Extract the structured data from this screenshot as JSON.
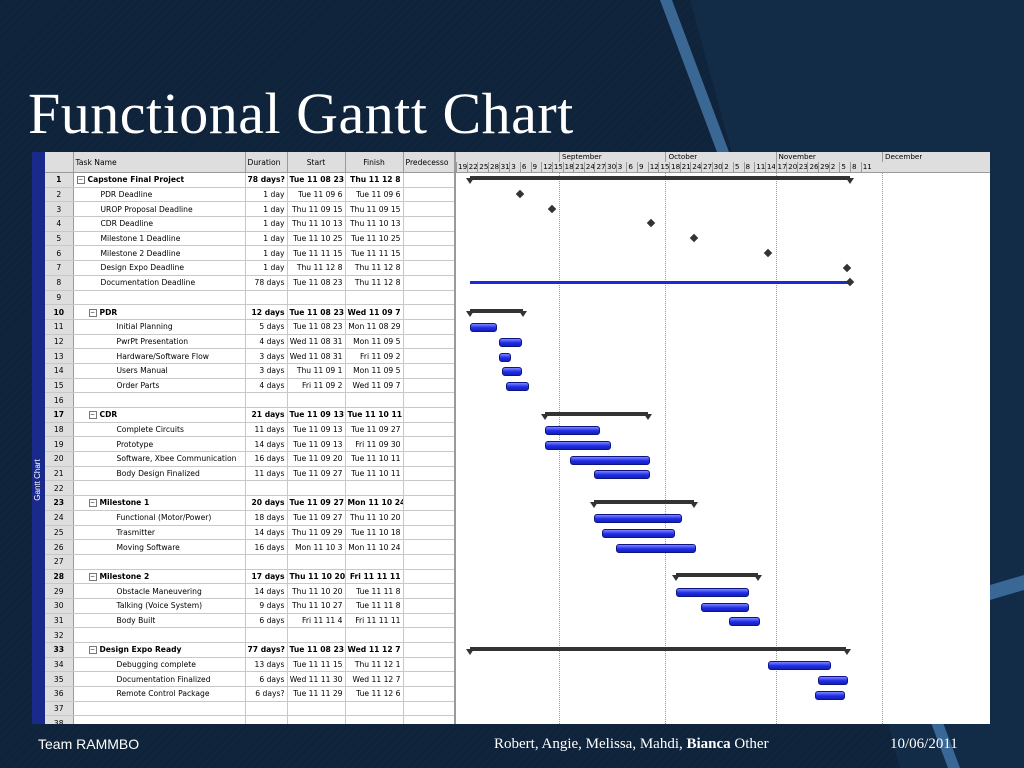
{
  "slide": {
    "title": "Functional Gantt Chart",
    "footer_team": "Team RAMMBO",
    "footer_names_before": "Robert, Angie, Melissa, Mahdi, ",
    "footer_names_bold": "Bianca",
    "footer_names_after": " Other",
    "footer_date": "10/06/2011"
  },
  "gantt": {
    "side_label": "Gantt Chart",
    "columns": {
      "id": "",
      "name": "Task Name",
      "duration": "Duration",
      "start": "Start",
      "finish": "Finish",
      "pred": "Predecesso"
    },
    "rows": [
      {
        "id": "1",
        "name": "Capstone Final Project",
        "duration": "78 days?",
        "start": "Tue 11 08 23",
        "finish": "Thu 11 12 8",
        "summary": true,
        "level": 0
      },
      {
        "id": "2",
        "name": "PDR Deadline",
        "duration": "1 day",
        "start": "Tue 11 09 6",
        "finish": "Tue 11 09 6",
        "level": 1
      },
      {
        "id": "3",
        "name": "UROP Proposal Deadline",
        "duration": "1 day",
        "start": "Thu 11 09 15",
        "finish": "Thu 11 09 15",
        "level": 1
      },
      {
        "id": "4",
        "name": "CDR Deadline",
        "duration": "1 day",
        "start": "Thu 11 10 13",
        "finish": "Thu 11 10 13",
        "level": 1
      },
      {
        "id": "5",
        "name": "Milestone 1 Deadline",
        "duration": "1 day",
        "start": "Tue 11 10 25",
        "finish": "Tue 11 10 25",
        "level": 1
      },
      {
        "id": "6",
        "name": "Milestone 2 Deadline",
        "duration": "1 day",
        "start": "Tue 11 11 15",
        "finish": "Tue 11 11 15",
        "level": 1
      },
      {
        "id": "7",
        "name": "Design Expo Deadline",
        "duration": "1 day",
        "start": "Thu 11 12 8",
        "finish": "Thu 11 12 8",
        "level": 1
      },
      {
        "id": "8",
        "name": "Documentation Deadline",
        "duration": "78 days",
        "start": "Tue 11 08 23",
        "finish": "Thu 11 12 8",
        "level": 1
      },
      {
        "id": "9",
        "name": "",
        "duration": "",
        "start": "",
        "finish": "",
        "level": 0
      },
      {
        "id": "10",
        "name": "PDR",
        "duration": "12 days",
        "start": "Tue 11 08 23",
        "finish": "Wed 11 09 7",
        "summary": true,
        "level": 1
      },
      {
        "id": "11",
        "name": "Initial Planning",
        "duration": "5 days",
        "start": "Tue 11 08 23",
        "finish": "Mon 11 08 29",
        "level": 2
      },
      {
        "id": "12",
        "name": "PwrPt Presentation",
        "duration": "4 days",
        "start": "Wed 11 08 31",
        "finish": "Mon 11 09 5",
        "level": 2
      },
      {
        "id": "13",
        "name": "Hardware/Software Flow",
        "duration": "3 days",
        "start": "Wed 11 08 31",
        "finish": "Fri 11 09 2",
        "level": 2
      },
      {
        "id": "14",
        "name": "Users Manual",
        "duration": "3 days",
        "start": "Thu 11 09 1",
        "finish": "Mon 11 09 5",
        "level": 2
      },
      {
        "id": "15",
        "name": "Order Parts",
        "duration": "4 days",
        "start": "Fri 11 09 2",
        "finish": "Wed 11 09 7",
        "level": 2
      },
      {
        "id": "16",
        "name": "",
        "duration": "",
        "start": "",
        "finish": "",
        "level": 0
      },
      {
        "id": "17",
        "name": "CDR",
        "duration": "21 days",
        "start": "Tue 11 09 13",
        "finish": "Tue 11 10 11",
        "summary": true,
        "level": 1
      },
      {
        "id": "18",
        "name": "Complete Circuits",
        "duration": "11 days",
        "start": "Tue 11 09 13",
        "finish": "Tue 11 09 27",
        "level": 2
      },
      {
        "id": "19",
        "name": "Prototype",
        "duration": "14 days",
        "start": "Tue 11 09 13",
        "finish": "Fri 11 09 30",
        "level": 2
      },
      {
        "id": "20",
        "name": "Software, Xbee Communication",
        "duration": "16 days",
        "start": "Tue 11 09 20",
        "finish": "Tue 11 10 11",
        "level": 2
      },
      {
        "id": "21",
        "name": "Body Design Finalized",
        "duration": "11 days",
        "start": "Tue 11 09 27",
        "finish": "Tue 11 10 11",
        "level": 2
      },
      {
        "id": "22",
        "name": "",
        "duration": "",
        "start": "",
        "finish": "",
        "level": 0
      },
      {
        "id": "23",
        "name": "Milestone 1",
        "duration": "20 days",
        "start": "Tue 11 09 27",
        "finish": "Mon 11 10 24",
        "summary": true,
        "level": 1
      },
      {
        "id": "24",
        "name": "Functional (Motor/Power)",
        "duration": "18 days",
        "start": "Tue 11 09 27",
        "finish": "Thu 11 10 20",
        "level": 2
      },
      {
        "id": "25",
        "name": "Trasmitter",
        "duration": "14 days",
        "start": "Thu 11 09 29",
        "finish": "Tue 11 10 18",
        "level": 2
      },
      {
        "id": "26",
        "name": "Moving Software",
        "duration": "16 days",
        "start": "Mon 11 10 3",
        "finish": "Mon 11 10 24",
        "level": 2
      },
      {
        "id": "27",
        "name": "",
        "duration": "",
        "start": "",
        "finish": "",
        "level": 0
      },
      {
        "id": "28",
        "name": "Milestone 2",
        "duration": "17 days",
        "start": "Thu 11 10 20",
        "finish": "Fri 11 11 11",
        "summary": true,
        "level": 1
      },
      {
        "id": "29",
        "name": "Obstacle Maneuvering",
        "duration": "14 days",
        "start": "Thu 11 10 20",
        "finish": "Tue 11 11 8",
        "level": 2
      },
      {
        "id": "30",
        "name": "Talking (Voice System)",
        "duration": "9 days",
        "start": "Thu 11 10 27",
        "finish": "Tue 11 11 8",
        "level": 2
      },
      {
        "id": "31",
        "name": "Body Built",
        "duration": "6 days",
        "start": "Fri 11 11 4",
        "finish": "Fri 11 11 11",
        "level": 2
      },
      {
        "id": "32",
        "name": "",
        "duration": "",
        "start": "",
        "finish": "",
        "level": 0
      },
      {
        "id": "33",
        "name": "Design Expo Ready",
        "duration": "77 days?",
        "start": "Tue 11 08 23",
        "finish": "Wed 11 12 7",
        "summary": true,
        "level": 1
      },
      {
        "id": "34",
        "name": "Debugging complete",
        "duration": "13 days",
        "start": "Tue 11 11 15",
        "finish": "Thu 11 12 1",
        "level": 2
      },
      {
        "id": "35",
        "name": "Documentation Finalized",
        "duration": "6 days",
        "start": "Wed 11 11 30",
        "finish": "Wed 11 12 7",
        "level": 2
      },
      {
        "id": "36",
        "name": "Remote Control Package",
        "duration": "6 days?",
        "start": "Tue 11 11 29",
        "finish": "Tue 11 12 6",
        "level": 2
      },
      {
        "id": "37",
        "name": "",
        "duration": "",
        "start": "",
        "finish": "",
        "level": 0
      },
      {
        "id": "38",
        "name": "",
        "duration": "",
        "start": "",
        "finish": "",
        "level": 0
      }
    ],
    "timeline": {
      "months": [
        {
          "label": "September",
          "day": 29
        },
        {
          "label": "October",
          "day": 59
        },
        {
          "label": "November",
          "day": 90
        },
        {
          "label": "December",
          "day": 120
        }
      ],
      "days": [
        "19",
        "22",
        "25",
        "28",
        "31",
        "3",
        "6",
        "9",
        "12",
        "15",
        "18",
        "21",
        "24",
        "27",
        "30",
        "3",
        "6",
        "9",
        "12",
        "15",
        "18",
        "21",
        "24",
        "27",
        "30",
        "2",
        "5",
        "8",
        "11",
        "14",
        "17",
        "20",
        "23",
        "26",
        "29",
        "2",
        "5",
        "8",
        "11"
      ]
    },
    "chart_items": [
      {
        "row": 1,
        "kind": "summary",
        "start": 4,
        "end": 111
      },
      {
        "row": 2,
        "kind": "milestone",
        "at": 18
      },
      {
        "row": 3,
        "kind": "milestone",
        "at": 27
      },
      {
        "row": 4,
        "kind": "milestone",
        "at": 55
      },
      {
        "row": 5,
        "kind": "milestone",
        "at": 67
      },
      {
        "row": 6,
        "kind": "milestone",
        "at": 88
      },
      {
        "row": 7,
        "kind": "milestone",
        "at": 110
      },
      {
        "row": 8,
        "kind": "line",
        "start": 4,
        "end": 111
      },
      {
        "row": 10,
        "kind": "summary",
        "start": 4,
        "end": 19
      },
      {
        "row": 11,
        "kind": "bar",
        "start": 4,
        "end": 11
      },
      {
        "row": 12,
        "kind": "bar",
        "start": 12,
        "end": 18
      },
      {
        "row": 13,
        "kind": "bar",
        "start": 12,
        "end": 15
      },
      {
        "row": 14,
        "kind": "bar",
        "start": 13,
        "end": 18
      },
      {
        "row": 15,
        "kind": "bar",
        "start": 14,
        "end": 20
      },
      {
        "row": 17,
        "kind": "summary",
        "start": 25,
        "end": 54
      },
      {
        "row": 18,
        "kind": "bar",
        "start": 25,
        "end": 40
      },
      {
        "row": 19,
        "kind": "bar",
        "start": 25,
        "end": 43
      },
      {
        "row": 20,
        "kind": "bar",
        "start": 32,
        "end": 54
      },
      {
        "row": 21,
        "kind": "bar",
        "start": 39,
        "end": 54
      },
      {
        "row": 23,
        "kind": "summary",
        "start": 39,
        "end": 67
      },
      {
        "row": 24,
        "kind": "bar",
        "start": 39,
        "end": 63
      },
      {
        "row": 25,
        "kind": "bar",
        "start": 41,
        "end": 61
      },
      {
        "row": 26,
        "kind": "bar",
        "start": 45,
        "end": 67
      },
      {
        "row": 28,
        "kind": "summary",
        "start": 62,
        "end": 85
      },
      {
        "row": 29,
        "kind": "bar",
        "start": 62,
        "end": 82
      },
      {
        "row": 30,
        "kind": "bar",
        "start": 69,
        "end": 82
      },
      {
        "row": 31,
        "kind": "bar",
        "start": 77,
        "end": 85
      },
      {
        "row": 33,
        "kind": "summary",
        "start": 4,
        "end": 110
      },
      {
        "row": 34,
        "kind": "bar",
        "start": 88,
        "end": 105
      },
      {
        "row": 35,
        "kind": "bar",
        "start": 102,
        "end": 110
      },
      {
        "row": 36,
        "kind": "bar",
        "start": 101,
        "end": 109
      }
    ]
  }
}
